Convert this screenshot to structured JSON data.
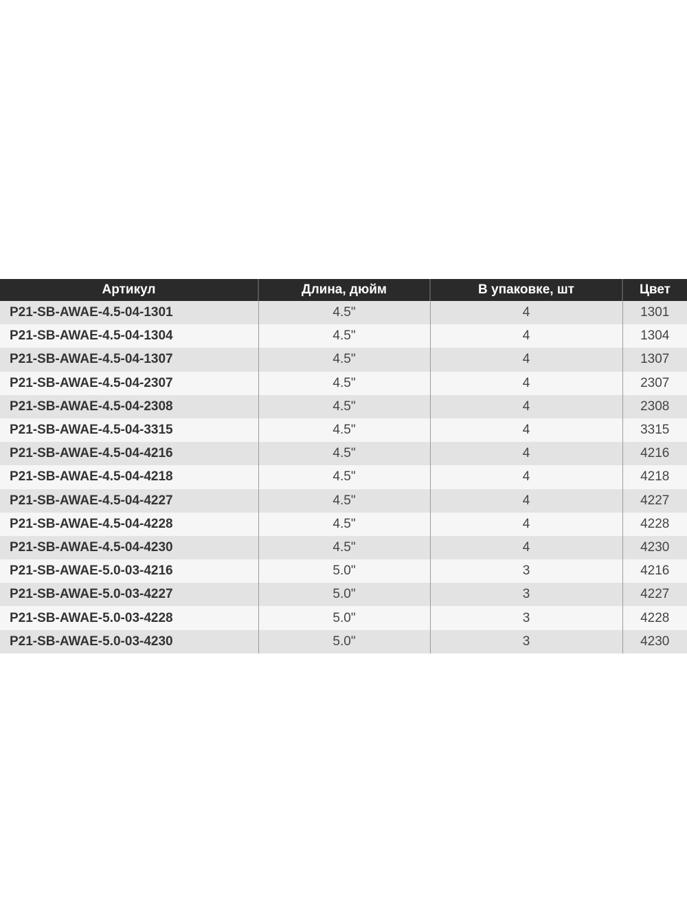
{
  "table": {
    "headers": [
      "Артикул",
      "Длина, дюйм",
      "В упаковке, шт",
      "Цвет"
    ],
    "rows": [
      [
        "P21-SB-AWAE-4.5-04-1301",
        "4.5\"",
        "4",
        "1301"
      ],
      [
        "P21-SB-AWAE-4.5-04-1304",
        "4.5\"",
        "4",
        "1304"
      ],
      [
        "P21-SB-AWAE-4.5-04-1307",
        "4.5\"",
        "4",
        "1307"
      ],
      [
        "P21-SB-AWAE-4.5-04-2307",
        "4.5\"",
        "4",
        "2307"
      ],
      [
        "P21-SB-AWAE-4.5-04-2308",
        "4.5\"",
        "4",
        "2308"
      ],
      [
        "P21-SB-AWAE-4.5-04-3315",
        "4.5\"",
        "4",
        "3315"
      ],
      [
        "P21-SB-AWAE-4.5-04-4216",
        "4.5\"",
        "4",
        "4216"
      ],
      [
        "P21-SB-AWAE-4.5-04-4218",
        "4.5\"",
        "4",
        "4218"
      ],
      [
        "P21-SB-AWAE-4.5-04-4227",
        "4.5\"",
        "4",
        "4227"
      ],
      [
        "P21-SB-AWAE-4.5-04-4228",
        "4.5\"",
        "4",
        "4228"
      ],
      [
        "P21-SB-AWAE-4.5-04-4230",
        "4.5\"",
        "4",
        "4230"
      ],
      [
        "P21-SB-AWAE-5.0-03-4216",
        "5.0\"",
        "3",
        "4216"
      ],
      [
        "P21-SB-AWAE-5.0-03-4227",
        "5.0\"",
        "3",
        "4227"
      ],
      [
        "P21-SB-AWAE-5.0-03-4228",
        "5.0\"",
        "3",
        "4228"
      ],
      [
        "P21-SB-AWAE-5.0-03-4230",
        "5.0\"",
        "3",
        "4230"
      ]
    ]
  },
  "colors": {
    "header_bg": "#2a2a2a",
    "row_odd": "#e3e3e3",
    "row_even": "#f6f6f6"
  }
}
